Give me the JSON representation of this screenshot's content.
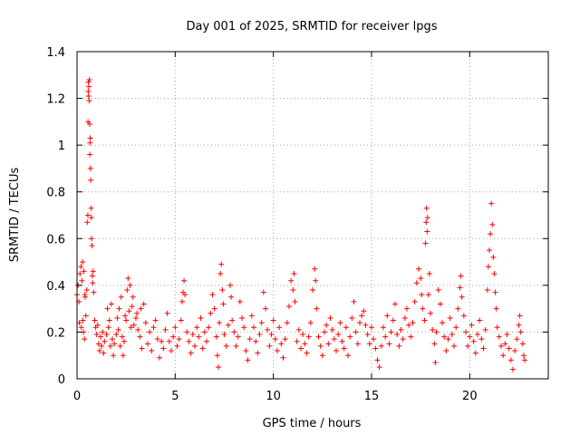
{
  "chart_data": {
    "type": "scatter",
    "title": "Day 001 of 2025, SRMTID for receiver lpgs",
    "xlabel": "GPS time / hours",
    "ylabel": "SRMTID / TECUs",
    "xlim": [
      0,
      24
    ],
    "ylim": [
      0,
      1.4
    ],
    "xticks": [
      0,
      5,
      10,
      15,
      20
    ],
    "xtick_labels": [
      "0",
      "5",
      "10",
      "15",
      "20"
    ],
    "yticks": [
      0,
      0.2,
      0.4,
      0.6,
      0.8,
      1.0,
      1.2,
      1.4
    ],
    "ytick_labels": [
      "0",
      "0.2",
      "0.4",
      "0.6",
      "0.8",
      "1",
      "1.2",
      "1.4"
    ],
    "grid": true,
    "marker": "+",
    "series": [
      {
        "name": "SRMTID",
        "color": "#ff0000",
        "points": [
          [
            0.0,
            0.36
          ],
          [
            0.05,
            0.4
          ],
          [
            0.1,
            0.33
          ],
          [
            0.12,
            0.24
          ],
          [
            0.15,
            0.45
          ],
          [
            0.2,
            0.48
          ],
          [
            0.22,
            0.22
          ],
          [
            0.25,
            0.42
          ],
          [
            0.28,
            0.5
          ],
          [
            0.3,
            0.25
          ],
          [
            0.33,
            0.2
          ],
          [
            0.35,
            0.46
          ],
          [
            0.38,
            0.17
          ],
          [
            0.4,
            0.36
          ],
          [
            0.42,
            0.35
          ],
          [
            0.45,
            0.27
          ],
          [
            0.5,
            0.38
          ],
          [
            0.52,
            0.67
          ],
          [
            0.55,
            0.7
          ],
          [
            0.56,
            1.1
          ],
          [
            0.57,
            1.23
          ],
          [
            0.58,
            1.27
          ],
          [
            0.59,
            1.21
          ],
          [
            0.6,
            1.25
          ],
          [
            0.62,
            1.19
          ],
          [
            0.63,
            1.28
          ],
          [
            0.64,
            1.09
          ],
          [
            0.65,
            0.96
          ],
          [
            0.66,
            1.01
          ],
          [
            0.67,
            1.03
          ],
          [
            0.68,
            0.9
          ],
          [
            0.7,
            0.85
          ],
          [
            0.72,
            0.73
          ],
          [
            0.73,
            0.69
          ],
          [
            0.74,
            0.6
          ],
          [
            0.76,
            0.57
          ],
          [
            0.78,
            0.44
          ],
          [
            0.8,
            0.41
          ],
          [
            0.82,
            0.46
          ],
          [
            0.85,
            0.37
          ],
          [
            0.9,
            0.25
          ],
          [
            0.95,
            0.22
          ],
          [
            1.0,
            0.19
          ],
          [
            1.05,
            0.23
          ],
          [
            1.1,
            0.15
          ],
          [
            1.15,
            0.12
          ],
          [
            1.2,
            0.18
          ],
          [
            1.25,
            0.14
          ],
          [
            1.3,
            0.2
          ],
          [
            1.35,
            0.11
          ],
          [
            1.4,
            0.16
          ],
          [
            1.5,
            0.19
          ],
          [
            1.55,
            0.3
          ],
          [
            1.6,
            0.22
          ],
          [
            1.65,
            0.25
          ],
          [
            1.7,
            0.14
          ],
          [
            1.75,
            0.32
          ],
          [
            1.8,
            0.17
          ],
          [
            1.85,
            0.1
          ],
          [
            1.9,
            0.15
          ],
          [
            2.0,
            0.19
          ],
          [
            2.05,
            0.26
          ],
          [
            2.1,
            0.21
          ],
          [
            2.15,
            0.3
          ],
          [
            2.2,
            0.14
          ],
          [
            2.25,
            0.35
          ],
          [
            2.3,
            0.18
          ],
          [
            2.35,
            0.1
          ],
          [
            2.4,
            0.16
          ],
          [
            2.45,
            0.27
          ],
          [
            2.5,
            0.25
          ],
          [
            2.55,
            0.38
          ],
          [
            2.6,
            0.43
          ],
          [
            2.65,
            0.29
          ],
          [
            2.7,
            0.4
          ],
          [
            2.75,
            0.22
          ],
          [
            2.8,
            0.31
          ],
          [
            2.85,
            0.35
          ],
          [
            2.9,
            0.23
          ],
          [
            3.0,
            0.26
          ],
          [
            3.05,
            0.28
          ],
          [
            3.1,
            0.21
          ],
          [
            3.2,
            0.18
          ],
          [
            3.25,
            0.3
          ],
          [
            3.3,
            0.13
          ],
          [
            3.4,
            0.32
          ],
          [
            3.5,
            0.24
          ],
          [
            3.6,
            0.15
          ],
          [
            3.7,
            0.2
          ],
          [
            3.8,
            0.12
          ],
          [
            3.9,
            0.22
          ],
          [
            4.0,
            0.25
          ],
          [
            4.1,
            0.17
          ],
          [
            4.2,
            0.09
          ],
          [
            4.3,
            0.16
          ],
          [
            4.4,
            0.13
          ],
          [
            4.5,
            0.21
          ],
          [
            4.6,
            0.28
          ],
          [
            4.7,
            0.16
          ],
          [
            4.8,
            0.12
          ],
          [
            4.9,
            0.18
          ],
          [
            5.0,
            0.22
          ],
          [
            5.1,
            0.14
          ],
          [
            5.2,
            0.17
          ],
          [
            5.3,
            0.25
          ],
          [
            5.35,
            0.33
          ],
          [
            5.4,
            0.37
          ],
          [
            5.45,
            0.42
          ],
          [
            5.5,
            0.36
          ],
          [
            5.6,
            0.2
          ],
          [
            5.7,
            0.16
          ],
          [
            5.8,
            0.11
          ],
          [
            5.9,
            0.19
          ],
          [
            6.0,
            0.14
          ],
          [
            6.1,
            0.22
          ],
          [
            6.2,
            0.18
          ],
          [
            6.3,
            0.26
          ],
          [
            6.4,
            0.13
          ],
          [
            6.5,
            0.2
          ],
          [
            6.6,
            0.16
          ],
          [
            6.7,
            0.22
          ],
          [
            6.8,
            0.28
          ],
          [
            6.9,
            0.36
          ],
          [
            7.0,
            0.3
          ],
          [
            7.1,
            0.18
          ],
          [
            7.15,
            0.1
          ],
          [
            7.2,
            0.05
          ],
          [
            7.25,
            0.24
          ],
          [
            7.3,
            0.45
          ],
          [
            7.35,
            0.49
          ],
          [
            7.4,
            0.38
          ],
          [
            7.45,
            0.32
          ],
          [
            7.5,
            0.19
          ],
          [
            7.6,
            0.14
          ],
          [
            7.7,
            0.23
          ],
          [
            7.8,
            0.4
          ],
          [
            7.85,
            0.35
          ],
          [
            7.9,
            0.25
          ],
          [
            8.0,
            0.2
          ],
          [
            8.1,
            0.14
          ],
          [
            8.2,
            0.18
          ],
          [
            8.3,
            0.33
          ],
          [
            8.4,
            0.26
          ],
          [
            8.5,
            0.22
          ],
          [
            8.6,
            0.12
          ],
          [
            8.7,
            0.08
          ],
          [
            8.8,
            0.17
          ],
          [
            8.9,
            0.27
          ],
          [
            9.0,
            0.22
          ],
          [
            9.1,
            0.16
          ],
          [
            9.2,
            0.11
          ],
          [
            9.3,
            0.19
          ],
          [
            9.4,
            0.24
          ],
          [
            9.5,
            0.37
          ],
          [
            9.6,
            0.3
          ],
          [
            9.7,
            0.21
          ],
          [
            9.8,
            0.14
          ],
          [
            9.9,
            0.19
          ],
          [
            10.0,
            0.25
          ],
          [
            10.1,
            0.17
          ],
          [
            10.2,
            0.12
          ],
          [
            10.3,
            0.22
          ],
          [
            10.4,
            0.15
          ],
          [
            10.5,
            0.09
          ],
          [
            10.6,
            0.17
          ],
          [
            10.7,
            0.24
          ],
          [
            10.8,
            0.31
          ],
          [
            10.9,
            0.42
          ],
          [
            11.0,
            0.38
          ],
          [
            11.05,
            0.45
          ],
          [
            11.1,
            0.33
          ],
          [
            11.2,
            0.16
          ],
          [
            11.3,
            0.21
          ],
          [
            11.4,
            0.13
          ],
          [
            11.5,
            0.19
          ],
          [
            11.6,
            0.15
          ],
          [
            11.7,
            0.11
          ],
          [
            11.8,
            0.18
          ],
          [
            11.9,
            0.24
          ],
          [
            12.0,
            0.38
          ],
          [
            12.1,
            0.47
          ],
          [
            12.15,
            0.42
          ],
          [
            12.2,
            0.3
          ],
          [
            12.3,
            0.18
          ],
          [
            12.4,
            0.14
          ],
          [
            12.5,
            0.1
          ],
          [
            12.6,
            0.2
          ],
          [
            12.7,
            0.23
          ],
          [
            12.8,
            0.15
          ],
          [
            12.9,
            0.26
          ],
          [
            13.0,
            0.21
          ],
          [
            13.1,
            0.17
          ],
          [
            13.2,
            0.12
          ],
          [
            13.3,
            0.19
          ],
          [
            13.4,
            0.24
          ],
          [
            13.5,
            0.16
          ],
          [
            13.6,
            0.13
          ],
          [
            13.7,
            0.22
          ],
          [
            13.8,
            0.1
          ],
          [
            13.9,
            0.18
          ],
          [
            14.0,
            0.26
          ],
          [
            14.1,
            0.33
          ],
          [
            14.2,
            0.2
          ],
          [
            14.3,
            0.15
          ],
          [
            14.4,
            0.24
          ],
          [
            14.5,
            0.27
          ],
          [
            14.6,
            0.29
          ],
          [
            14.7,
            0.23
          ],
          [
            14.8,
            0.19
          ],
          [
            14.9,
            0.15
          ],
          [
            15.0,
            0.22
          ],
          [
            15.1,
            0.17
          ],
          [
            15.2,
            0.13
          ],
          [
            15.3,
            0.08
          ],
          [
            15.4,
            0.05
          ],
          [
            15.5,
            0.14
          ],
          [
            15.6,
            0.22
          ],
          [
            15.7,
            0.18
          ],
          [
            15.8,
            0.27
          ],
          [
            15.9,
            0.15
          ],
          [
            16.0,
            0.2
          ],
          [
            16.1,
            0.25
          ],
          [
            16.2,
            0.32
          ],
          [
            16.3,
            0.19
          ],
          [
            16.4,
            0.14
          ],
          [
            16.5,
            0.21
          ],
          [
            16.6,
            0.17
          ],
          [
            16.7,
            0.26
          ],
          [
            16.8,
            0.3
          ],
          [
            16.9,
            0.23
          ],
          [
            17.0,
            0.18
          ],
          [
            17.1,
            0.24
          ],
          [
            17.2,
            0.33
          ],
          [
            17.3,
            0.41
          ],
          [
            17.4,
            0.47
          ],
          [
            17.5,
            0.43
          ],
          [
            17.55,
            0.36
          ],
          [
            17.6,
            0.3
          ],
          [
            17.7,
            0.25
          ],
          [
            17.75,
            0.58
          ],
          [
            17.78,
            0.67
          ],
          [
            17.8,
            0.73
          ],
          [
            17.83,
            0.63
          ],
          [
            17.85,
            0.69
          ],
          [
            17.9,
            0.36
          ],
          [
            17.95,
            0.45
          ],
          [
            18.0,
            0.28
          ],
          [
            18.1,
            0.21
          ],
          [
            18.2,
            0.15
          ],
          [
            18.25,
            0.07
          ],
          [
            18.3,
            0.2
          ],
          [
            18.4,
            0.38
          ],
          [
            18.5,
            0.32
          ],
          [
            18.6,
            0.24
          ],
          [
            18.7,
            0.18
          ],
          [
            18.8,
            0.12
          ],
          [
            18.9,
            0.17
          ],
          [
            19.0,
            0.26
          ],
          [
            19.1,
            0.19
          ],
          [
            19.2,
            0.14
          ],
          [
            19.3,
            0.22
          ],
          [
            19.4,
            0.3
          ],
          [
            19.5,
            0.39
          ],
          [
            19.55,
            0.44
          ],
          [
            19.6,
            0.35
          ],
          [
            19.7,
            0.27
          ],
          [
            19.8,
            0.2
          ],
          [
            19.9,
            0.14
          ],
          [
            20.0,
            0.18
          ],
          [
            20.1,
            0.23
          ],
          [
            20.2,
            0.16
          ],
          [
            20.3,
            0.11
          ],
          [
            20.4,
            0.19
          ],
          [
            20.5,
            0.25
          ],
          [
            20.6,
            0.17
          ],
          [
            20.7,
            0.13
          ],
          [
            20.8,
            0.21
          ],
          [
            20.9,
            0.38
          ],
          [
            20.95,
            0.48
          ],
          [
            21.0,
            0.55
          ],
          [
            21.05,
            0.62
          ],
          [
            21.1,
            0.75
          ],
          [
            21.15,
            0.66
          ],
          [
            21.2,
            0.52
          ],
          [
            21.25,
            0.45
          ],
          [
            21.3,
            0.37
          ],
          [
            21.35,
            0.3
          ],
          [
            21.4,
            0.22
          ],
          [
            21.5,
            0.18
          ],
          [
            21.6,
            0.14
          ],
          [
            21.7,
            0.1
          ],
          [
            21.8,
            0.15
          ],
          [
            21.9,
            0.19
          ],
          [
            22.0,
            0.13
          ],
          [
            22.1,
            0.08
          ],
          [
            22.2,
            0.04
          ],
          [
            22.3,
            0.12
          ],
          [
            22.4,
            0.17
          ],
          [
            22.5,
            0.23
          ],
          [
            22.55,
            0.27
          ],
          [
            22.6,
            0.2
          ],
          [
            22.7,
            0.15
          ],
          [
            22.75,
            0.1
          ],
          [
            22.8,
            0.08
          ]
        ]
      }
    ]
  }
}
